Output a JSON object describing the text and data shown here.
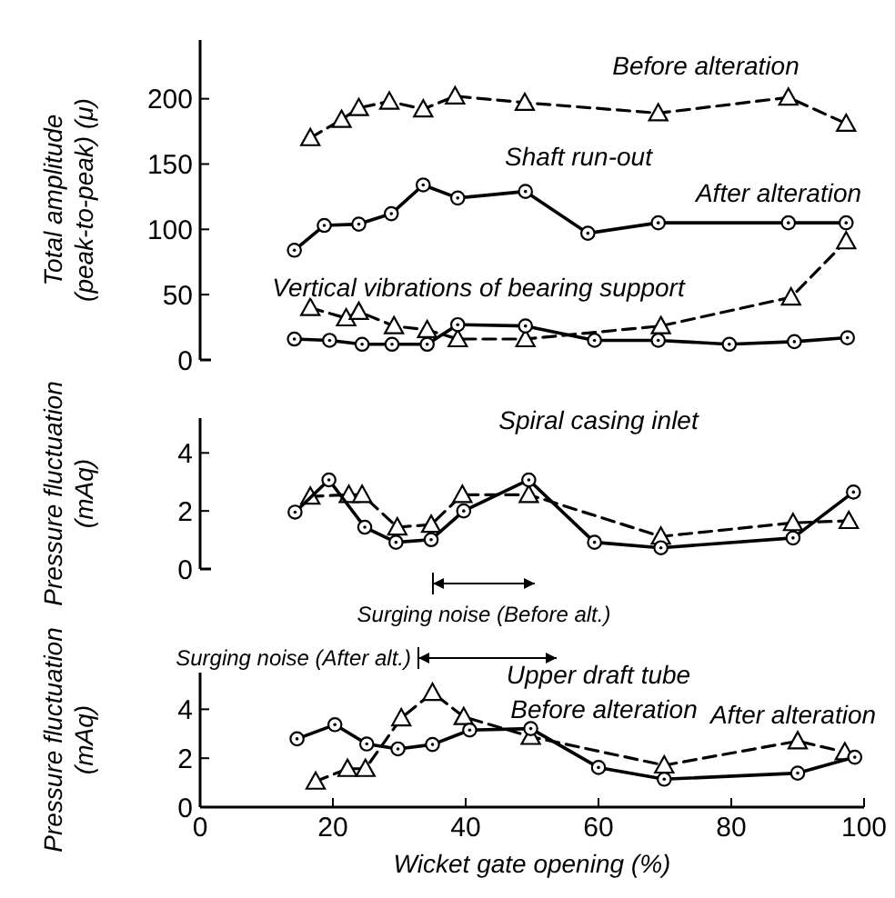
{
  "chart_data": [
    {
      "type": "line",
      "ylabel": "Total amplitude\n(peak-to-peak) (μ)",
      "xlim": [
        0,
        100
      ],
      "ylim": [
        0,
        245
      ],
      "yticks": [
        0,
        50,
        100,
        150,
        200
      ],
      "tick_labels": "y",
      "grid": false,
      "series": [
        {
          "color": "#000000",
          "marker": "triangle",
          "line_style": "dashed",
          "x": [
            16.6,
            21.3,
            23.9,
            28.5,
            33.6,
            38.4,
            48.9,
            69,
            88.6,
            97.3
          ],
          "values": [
            170,
            184,
            193,
            198,
            192,
            202,
            197,
            189,
            201,
            181
          ]
        },
        {
          "color": "#000000",
          "marker": "circle",
          "line_style": "solid",
          "x": [
            14.2,
            18.7,
            23.9,
            28.8,
            33.6,
            38.8,
            49,
            58.4,
            69,
            88.6,
            97.3
          ],
          "values": [
            84,
            103,
            104,
            112,
            134,
            124,
            129,
            97,
            105,
            105,
            105
          ]
        },
        {
          "color": "#000000",
          "marker": "triangle",
          "line_style": "dashed",
          "x": [
            16.6,
            22,
            23.9,
            29.2,
            34.2,
            38.8,
            49,
            69.4,
            89,
            97.3
          ],
          "values": [
            40,
            32,
            37,
            26,
            23,
            16,
            16,
            26,
            48,
            91
          ]
        },
        {
          "color": "#000000",
          "marker": "circle",
          "line_style": "solid",
          "x": [
            14.2,
            19.5,
            24.4,
            28.9,
            34.2,
            38.8,
            49,
            59.4,
            69,
            79.7,
            89.5,
            97.5
          ],
          "values": [
            16,
            15,
            12,
            12,
            12,
            27,
            26,
            15,
            15,
            12,
            14,
            17
          ]
        }
      ],
      "annotations": [
        "Before alteration",
        "Shaft run-out",
        "After alteration",
        "Vertical vibrations of bearing support"
      ]
    },
    {
      "type": "line",
      "title": "Spiral casing inlet",
      "ylabel": "Pressure fluctuation\n(mAq)",
      "xlim": [
        0,
        100
      ],
      "ylim": [
        0,
        5.2
      ],
      "yticks": [
        0,
        2,
        4
      ],
      "tick_labels": "y",
      "grid": false,
      "series": [
        {
          "color": "#000000",
          "marker": "triangle",
          "line_style": "dashed",
          "x": [
            16.6,
            22.4,
            24.4,
            29.7,
            34.8,
            39.5,
            49.5,
            69.4,
            89.3,
            97.7
          ],
          "values": [
            2.5,
            2.56,
            2.56,
            1.44,
            1.53,
            2.56,
            2.56,
            1.12,
            1.59,
            1.66
          ]
        },
        {
          "color": "#000000",
          "marker": "circle",
          "line_style": "solid",
          "x": [
            14.3,
            19.4,
            24.8,
            29.5,
            34.8,
            39.7,
            49.5,
            59.4,
            69.4,
            89.3,
            98.4
          ],
          "values": [
            1.96,
            3.07,
            1.44,
            0.92,
            1.01,
            2.0,
            3.07,
            0.92,
            0.73,
            1.07,
            2.65
          ]
        }
      ],
      "annotations": [
        "Surging noise (Before alt.)"
      ]
    },
    {
      "type": "line",
      "title": "Upper draft tube",
      "ylabel": "Pressure fluctuation\n(mAq)",
      "xlabel": "Wicket gate opening (%)",
      "xlim": [
        0,
        100
      ],
      "ylim": [
        0,
        5.5
      ],
      "yticks": [
        0,
        2,
        4
      ],
      "xticks": [
        0,
        20,
        40,
        60,
        80,
        100
      ],
      "grid": false,
      "series": [
        {
          "color": "#000000",
          "marker": "triangle",
          "line_style": "dashed",
          "x": [
            17.4,
            22.2,
            24.9,
            30.3,
            35,
            39.7,
            49.8,
            69.9,
            90,
            97.1
          ],
          "values": [
            1.05,
            1.57,
            1.57,
            3.64,
            4.68,
            3.69,
            2.88,
            1.71,
            2.7,
            2.25
          ]
        },
        {
          "color": "#000000",
          "marker": "circle",
          "line_style": "solid",
          "x": [
            14.6,
            20.3,
            25.1,
            29.8,
            35,
            40.6,
            49.8,
            60,
            69.9,
            90,
            98.6
          ],
          "values": [
            2.79,
            3.37,
            2.58,
            2.38,
            2.56,
            3.15,
            3.21,
            1.62,
            1.14,
            1.39,
            2.04
          ]
        }
      ],
      "annotations": [
        "Surging noise (After alt.)",
        "Before alteration",
        "After alteration"
      ]
    }
  ]
}
